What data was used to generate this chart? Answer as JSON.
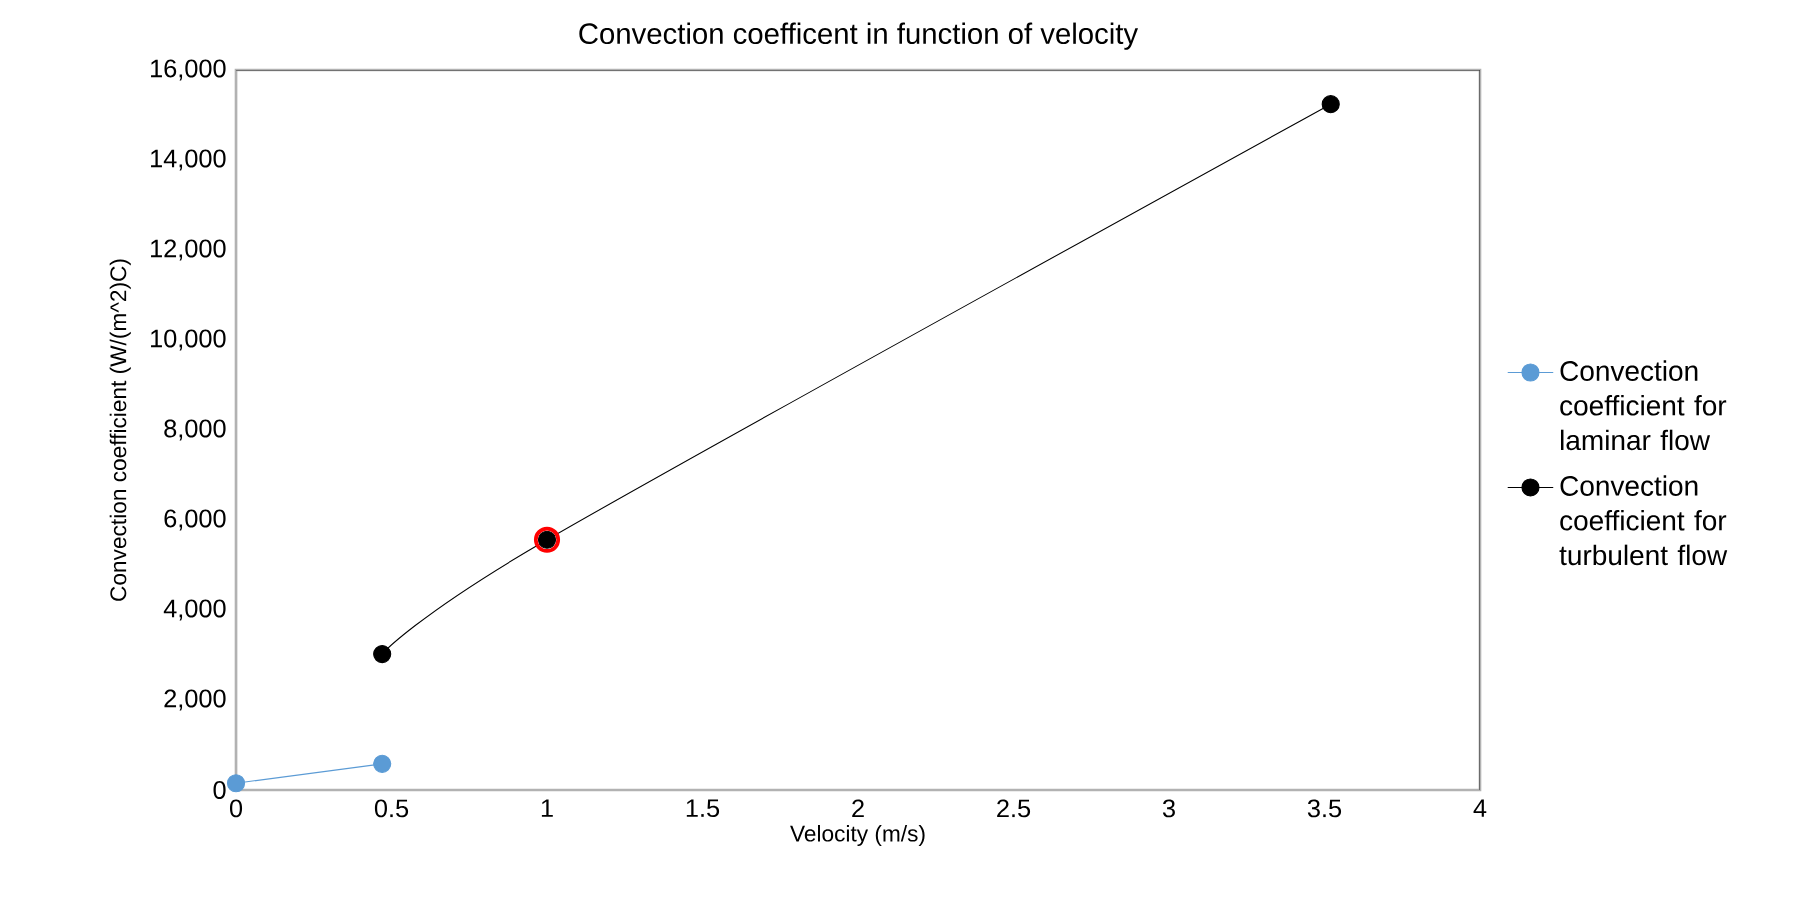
{
  "chart_data": {
    "type": "line",
    "title": "Convection coefficent in function of velocity",
    "xlabel": "Velocity (m/s)",
    "ylabel": "Convection coefficient (W/(m^2)C)",
    "xlim": [
      0,
      4
    ],
    "xticks": [
      0,
      0.5,
      1,
      1.5,
      2,
      2.5,
      3,
      3.5,
      4
    ],
    "ylim": [
      0,
      16000
    ],
    "yticks": [
      {
        "value": 0,
        "label": "0"
      },
      {
        "value": 2000,
        "label": "2,000"
      },
      {
        "value": 4000,
        "label": "4,000"
      },
      {
        "value": 6000,
        "label": "6,000"
      },
      {
        "value": 8000,
        "label": "8,000"
      },
      {
        "value": 10000,
        "label": "10,000"
      },
      {
        "value": 12000,
        "label": "12,000"
      },
      {
        "value": 14000,
        "label": "14,000"
      },
      {
        "value": 16000,
        "label": "16,000"
      }
    ],
    "marker": "circle",
    "line_style": "solid",
    "legend": "right",
    "grid": false,
    "series": [
      {
        "name": "Convection coefficient for laminar flow",
        "color": "#5b9bd5",
        "x": [
          0,
          0.47
        ],
        "values": [
          150,
          580
        ]
      },
      {
        "name": "Convection coefficient for turbulent flow",
        "color": "#000000",
        "x": [
          0.47,
          1,
          3.52
        ],
        "values": [
          3020,
          5560,
          15240
        ]
      },
      {
        "type": "scatter",
        "color": "#ff0000",
        "x": [
          1
        ],
        "values": [
          5560
        ]
      }
    ]
  }
}
